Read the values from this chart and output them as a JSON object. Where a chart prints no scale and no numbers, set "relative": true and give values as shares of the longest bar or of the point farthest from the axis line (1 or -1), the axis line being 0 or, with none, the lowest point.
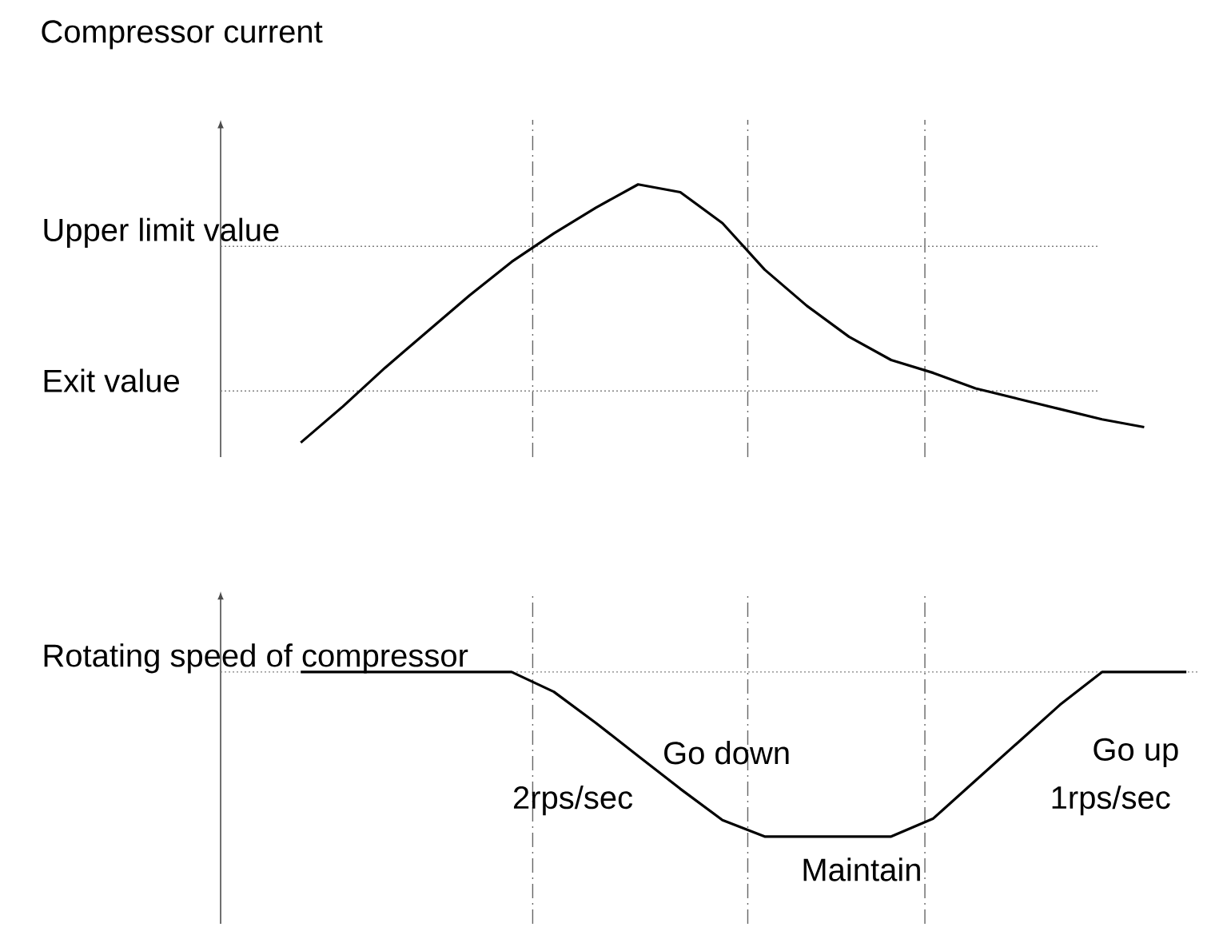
{
  "chart_data": [
    {
      "type": "line",
      "title": "Compressor current",
      "relative": true,
      "categories": [
        null,
        null,
        null,
        null,
        null,
        null,
        null,
        null,
        null,
        null,
        null,
        null,
        null,
        null,
        null,
        null,
        null,
        null,
        null,
        null,
        null
      ],
      "series": [
        {
          "color": "#000000",
          "values": [
            0,
            0.14,
            0.29,
            0.43,
            0.57,
            0.7,
            0.81,
            0.91,
            1,
            0.97,
            0.85,
            0.67,
            0.53,
            0.41,
            0.32,
            0.27,
            0.21,
            0.17,
            0.13,
            0.09,
            0.06
          ]
        }
      ],
      "ref_lines": [
        {
          "axis": "y",
          "value": 0.76,
          "label": "Upper limit value",
          "color": "#808080",
          "line_style": "dotted"
        },
        {
          "axis": "y",
          "value": 0.2,
          "label": "Exit value",
          "color": "#808080",
          "line_style": "dotted"
        }
      ]
    },
    {
      "type": "line",
      "relative": true,
      "categories": [
        null,
        null,
        null,
        null,
        null,
        null,
        null,
        null,
        null,
        null,
        null,
        null,
        null,
        null,
        null,
        null,
        null,
        null,
        null,
        null,
        null,
        null
      ],
      "series": [
        {
          "color": "#000000",
          "values": [
            1,
            1,
            1,
            1,
            1,
            1,
            0.88,
            0.69,
            0.49,
            0.29,
            0.1,
            0,
            0,
            0,
            0,
            0.11,
            0.34,
            0.57,
            0.8,
            1,
            1,
            1
          ]
        }
      ],
      "ref_lines": [
        {
          "axis": "y",
          "value": 1,
          "label": "Rotating speed of compressor",
          "color": "#808080",
          "line_style": "dotted"
        }
      ],
      "annotations": [
        "Go down",
        "2rps/sec",
        "Maintain",
        "Go up",
        "1rps/sec"
      ]
    }
  ]
}
